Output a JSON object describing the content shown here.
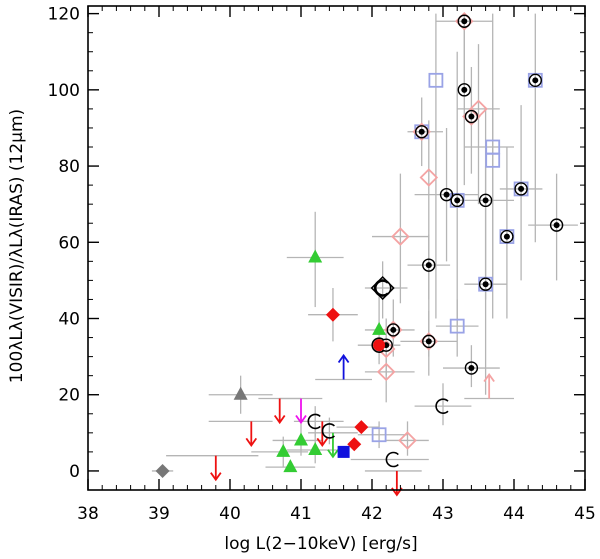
{
  "chart_data": {
    "type": "scatter",
    "title": "",
    "xlabel": "log L(2−10keV) [erg/s]",
    "ylabel": "100λLλ(VISIR)/λLλ(IRAS) (12μm)",
    "xlim": [
      38,
      45
    ],
    "ylim": [
      -5,
      122
    ],
    "xticks": [
      38,
      39,
      40,
      41,
      42,
      43,
      44,
      45
    ],
    "yticks": [
      0,
      20,
      40,
      60,
      80,
      100,
      120
    ],
    "x_tick_labels": [
      "38",
      "39",
      "40",
      "41",
      "42",
      "43",
      "44",
      "45"
    ],
    "y_tick_labels": [
      "0",
      "20",
      "40",
      "60",
      "80",
      "100",
      "120"
    ],
    "grid": false,
    "series": [
      {
        "name": "open diamonds",
        "marker": "diamond-open",
        "color": "#f4a3a3",
        "points": [
          {
            "x": 43.3,
            "y": 118
          },
          {
            "x": 43.5,
            "y": 95
          },
          {
            "x": 43.4,
            "y": 93
          },
          {
            "x": 42.7,
            "y": 89
          },
          {
            "x": 42.8,
            "y": 77
          },
          {
            "x": 42.4,
            "y": 61.5
          },
          {
            "x": 42.3,
            "y": 37
          },
          {
            "x": 42.2,
            "y": 32
          },
          {
            "x": 42.8,
            "y": 34
          },
          {
            "x": 42.2,
            "y": 26
          },
          {
            "x": 42.5,
            "y": 8
          }
        ]
      },
      {
        "name": "open squares",
        "marker": "square-open",
        "color": "#9aa3e6",
        "points": [
          {
            "x": 42.9,
            "y": 102.5
          },
          {
            "x": 44.3,
            "y": 102.5
          },
          {
            "x": 42.7,
            "y": 89
          },
          {
            "x": 43.7,
            "y": 85
          },
          {
            "x": 43.7,
            "y": 81.5
          },
          {
            "x": 44.1,
            "y": 74
          },
          {
            "x": 43.2,
            "y": 71
          },
          {
            "x": 43.9,
            "y": 61.5
          },
          {
            "x": 43.6,
            "y": 49
          },
          {
            "x": 43.2,
            "y": 38
          },
          {
            "x": 42.1,
            "y": 9.5
          }
        ]
      },
      {
        "name": "filled dots",
        "marker": "dot-circle",
        "color": "#000000",
        "points": [
          {
            "x": 43.3,
            "y": 118
          },
          {
            "x": 44.3,
            "y": 102.5
          },
          {
            "x": 43.3,
            "y": 100
          },
          {
            "x": 43.4,
            "y": 93
          },
          {
            "x": 42.7,
            "y": 89
          },
          {
            "x": 44.1,
            "y": 74
          },
          {
            "x": 43.05,
            "y": 72.5
          },
          {
            "x": 43.2,
            "y": 71
          },
          {
            "x": 43.6,
            "y": 71
          },
          {
            "x": 44.6,
            "y": 64.5
          },
          {
            "x": 43.9,
            "y": 61.5
          },
          {
            "x": 42.8,
            "y": 54
          },
          {
            "x": 43.6,
            "y": 49
          },
          {
            "x": 42.3,
            "y": 37
          },
          {
            "x": 42.8,
            "y": 34
          },
          {
            "x": 42.2,
            "y": 33
          },
          {
            "x": 43.4,
            "y": 27
          }
        ]
      },
      {
        "name": "filled diamonds",
        "marker": "diamond-filled",
        "color": "#ee1111",
        "points": [
          {
            "x": 41.45,
            "y": 41
          },
          {
            "x": 41.85,
            "y": 11.5
          },
          {
            "x": 41.75,
            "y": 7
          }
        ]
      },
      {
        "name": "filled circle",
        "marker": "circle-filled",
        "color": "#ee1111",
        "points": [
          {
            "x": 42.1,
            "y": 33
          }
        ]
      },
      {
        "name": "filled square",
        "marker": "square-filled",
        "color": "#1111dd",
        "points": [
          {
            "x": 41.6,
            "y": 5
          }
        ]
      },
      {
        "name": "filled triangles",
        "marker": "triangle",
        "color": "#33cc33",
        "points": [
          {
            "x": 41.2,
            "y": 56
          },
          {
            "x": 42.1,
            "y": 37
          },
          {
            "x": 41.0,
            "y": 8
          },
          {
            "x": 40.75,
            "y": 5
          },
          {
            "x": 41.2,
            "y": 5.5
          },
          {
            "x": 40.85,
            "y": 1
          }
        ]
      },
      {
        "name": "gray triangle",
        "marker": "triangle",
        "color": "#777777",
        "points": [
          {
            "x": 40.15,
            "y": 20
          }
        ]
      },
      {
        "name": "gray diamond",
        "marker": "diamond-filled",
        "color": "#777777",
        "points": [
          {
            "x": 39.05,
            "y": 0
          }
        ]
      },
      {
        "name": "C markers",
        "marker": "C",
        "color": "#000000",
        "points": [
          {
            "x": 42.15,
            "y": 48
          },
          {
            "x": 41.2,
            "y": 13
          },
          {
            "x": 41.4,
            "y": 10.5
          },
          {
            "x": 42.3,
            "y": 3
          },
          {
            "x": 43.0,
            "y": 17
          },
          {
            "x": 42.1,
            "y": 33
          }
        ]
      }
    ],
    "upper_limits": [
      {
        "x": 40.7,
        "y": 19,
        "color": "#ee1111"
      },
      {
        "x": 40.3,
        "y": 13,
        "color": "#ee1111"
      },
      {
        "x": 39.8,
        "y": 4,
        "color": "#ee1111"
      },
      {
        "x": 41.3,
        "y": 13,
        "color": "#ee1111"
      },
      {
        "x": 42.35,
        "y": 0,
        "color": "#ee1111"
      },
      {
        "x": 41.0,
        "y": 19,
        "color": "#ee11ee"
      },
      {
        "x": 41.45,
        "y": 10,
        "color": "#33cc33"
      }
    ],
    "lower_limits": [
      {
        "x": 41.6,
        "y": 24,
        "color": "#1111dd"
      },
      {
        "x": 43.65,
        "y": 19,
        "color": "#f4a3a3"
      }
    ],
    "highlighted": [
      {
        "x": 42.15,
        "y": 48,
        "marker": "large-diamond-circle"
      }
    ],
    "x_error_bars": [
      {
        "x": 43.3,
        "y": 118,
        "lo": 42.9,
        "hi": 43.7
      },
      {
        "x": 43.5,
        "y": 95,
        "lo": 43.2,
        "hi": 43.8
      },
      {
        "x": 42.7,
        "y": 89,
        "lo": 42.5,
        "hi": 43.0
      },
      {
        "x": 43.7,
        "y": 85,
        "lo": 43.3,
        "hi": 44.0
      },
      {
        "x": 44.1,
        "y": 74,
        "lo": 43.8,
        "hi": 44.4
      },
      {
        "x": 43.05,
        "y": 72.5,
        "lo": 42.6,
        "hi": 43.5
      },
      {
        "x": 43.6,
        "y": 71,
        "lo": 43.2,
        "hi": 44.0
      },
      {
        "x": 44.6,
        "y": 64.5,
        "lo": 44.2,
        "hi": 44.9
      },
      {
        "x": 42.4,
        "y": 61.5,
        "lo": 42.0,
        "hi": 42.8
      },
      {
        "x": 42.8,
        "y": 54,
        "lo": 42.5,
        "hi": 43.1
      },
      {
        "x": 43.6,
        "y": 49,
        "lo": 43.3,
        "hi": 43.9
      },
      {
        "x": 42.15,
        "y": 48,
        "lo": 41.9,
        "hi": 42.5
      },
      {
        "x": 41.2,
        "y": 56,
        "lo": 40.8,
        "hi": 41.6
      },
      {
        "x": 41.45,
        "y": 41,
        "lo": 41.1,
        "hi": 41.8
      },
      {
        "x": 43.2,
        "y": 38,
        "lo": 42.9,
        "hi": 43.5
      },
      {
        "x": 42.3,
        "y": 37,
        "lo": 41.9,
        "hi": 42.6
      },
      {
        "x": 42.8,
        "y": 34,
        "lo": 42.4,
        "hi": 43.2
      },
      {
        "x": 42.1,
        "y": 33,
        "lo": 41.8,
        "hi": 42.4
      },
      {
        "x": 41.6,
        "y": 24,
        "lo": 41.2,
        "hi": 42.0
      },
      {
        "x": 42.2,
        "y": 26,
        "lo": 41.9,
        "hi": 42.6
      },
      {
        "x": 43.4,
        "y": 27,
        "lo": 43.0,
        "hi": 43.8
      },
      {
        "x": 40.15,
        "y": 20,
        "lo": 39.7,
        "hi": 40.6
      },
      {
        "x": 43.65,
        "y": 19,
        "lo": 43.3,
        "hi": 44.0
      },
      {
        "x": 43.0,
        "y": 17,
        "lo": 42.6,
        "hi": 43.4
      },
      {
        "x": 40.7,
        "y": 19,
        "lo": 40.4,
        "hi": 41.0
      },
      {
        "x": 40.3,
        "y": 13,
        "lo": 39.7,
        "hi": 40.6
      },
      {
        "x": 39.8,
        "y": 4,
        "lo": 39.1,
        "hi": 40.4
      },
      {
        "x": 41.0,
        "y": 19,
        "lo": 40.7,
        "hi": 41.3
      },
      {
        "x": 41.3,
        "y": 13,
        "lo": 40.9,
        "hi": 41.6
      },
      {
        "x": 41.45,
        "y": 10,
        "lo": 41.1,
        "hi": 41.8
      },
      {
        "x": 41.85,
        "y": 11.5,
        "lo": 41.5,
        "hi": 42.1
      },
      {
        "x": 41.0,
        "y": 8,
        "lo": 40.6,
        "hi": 41.3
      },
      {
        "x": 40.75,
        "y": 5,
        "lo": 40.3,
        "hi": 41.1
      },
      {
        "x": 41.2,
        "y": 5.5,
        "lo": 40.8,
        "hi": 41.5
      },
      {
        "x": 40.85,
        "y": 1,
        "lo": 40.5,
        "hi": 41.2
      },
      {
        "x": 39.05,
        "y": 0,
        "lo": 38.9,
        "hi": 39.2
      },
      {
        "x": 42.1,
        "y": 9.5,
        "lo": 41.8,
        "hi": 42.5
      },
      {
        "x": 42.5,
        "y": 8,
        "lo": 42.2,
        "hi": 42.8
      },
      {
        "x": 42.3,
        "y": 3,
        "lo": 41.7,
        "hi": 42.8
      },
      {
        "x": 42.35,
        "y": 0,
        "lo": 41.9,
        "hi": 42.7
      }
    ],
    "y_error_bars": [
      {
        "x": 43.3,
        "y": 118,
        "lo": 100,
        "hi": 120
      },
      {
        "x": 43.4,
        "y": 93,
        "lo": 78,
        "hi": 106
      },
      {
        "x": 43.5,
        "y": 95,
        "lo": 70,
        "hi": 112
      },
      {
        "x": 42.9,
        "y": 102.5,
        "lo": 40,
        "hi": 120
      },
      {
        "x": 44.3,
        "y": 102.5,
        "lo": 60,
        "hi": 120
      },
      {
        "x": 43.3,
        "y": 100,
        "lo": 75,
        "hi": 120
      },
      {
        "x": 42.7,
        "y": 89,
        "lo": 80,
        "hi": 98
      },
      {
        "x": 42.8,
        "y": 77,
        "lo": 30,
        "hi": 92
      },
      {
        "x": 43.7,
        "y": 85,
        "lo": 50,
        "hi": 120
      },
      {
        "x": 43.7,
        "y": 81.5,
        "lo": 40,
        "hi": 100
      },
      {
        "x": 44.1,
        "y": 74,
        "lo": 50,
        "hi": 96
      },
      {
        "x": 43.05,
        "y": 72.5,
        "lo": 55,
        "hi": 90
      },
      {
        "x": 43.2,
        "y": 71,
        "lo": 38,
        "hi": 110
      },
      {
        "x": 43.6,
        "y": 71,
        "lo": 45,
        "hi": 95
      },
      {
        "x": 44.6,
        "y": 64.5,
        "lo": 50,
        "hi": 78
      },
      {
        "x": 43.9,
        "y": 61.5,
        "lo": 40,
        "hi": 85
      },
      {
        "x": 42.8,
        "y": 54,
        "lo": 45,
        "hi": 62
      },
      {
        "x": 43.6,
        "y": 49,
        "lo": 20,
        "hi": 80
      },
      {
        "x": 42.4,
        "y": 61.5,
        "lo": 44,
        "hi": 78
      },
      {
        "x": 42.15,
        "y": 48,
        "lo": 40,
        "hi": 55
      },
      {
        "x": 41.2,
        "y": 56,
        "lo": 43,
        "hi": 68
      },
      {
        "x": 42.1,
        "y": 37,
        "lo": 28,
        "hi": 46
      },
      {
        "x": 42.3,
        "y": 37,
        "lo": 30,
        "hi": 45
      },
      {
        "x": 42.2,
        "y": 32,
        "lo": 25,
        "hi": 40
      },
      {
        "x": 42.8,
        "y": 34,
        "lo": 25,
        "hi": 42
      },
      {
        "x": 43.2,
        "y": 38,
        "lo": 30,
        "hi": 45
      },
      {
        "x": 42.2,
        "y": 26,
        "lo": 18,
        "hi": 34
      },
      {
        "x": 43.4,
        "y": 27,
        "lo": 22,
        "hi": 33
      },
      {
        "x": 43.0,
        "y": 17,
        "lo": 12,
        "hi": 23
      },
      {
        "x": 42.1,
        "y": 9.5,
        "lo": 6,
        "hi": 13
      },
      {
        "x": 42.5,
        "y": 8,
        "lo": 4,
        "hi": 13
      },
      {
        "x": 40.15,
        "y": 20,
        "lo": 15,
        "hi": 25
      },
      {
        "x": 41.0,
        "y": 8,
        "lo": 4,
        "hi": 13
      },
      {
        "x": 41.2,
        "y": 5.5,
        "lo": 2,
        "hi": 10
      },
      {
        "x": 40.75,
        "y": 5,
        "lo": 1,
        "hi": 9
      },
      {
        "x": 41.45,
        "y": 41,
        "lo": 34,
        "hi": 48
      },
      {
        "x": 41.2,
        "y": 13,
        "lo": 9,
        "hi": 17
      },
      {
        "x": 41.4,
        "y": 10.5,
        "lo": 7,
        "hi": 14
      }
    ]
  }
}
